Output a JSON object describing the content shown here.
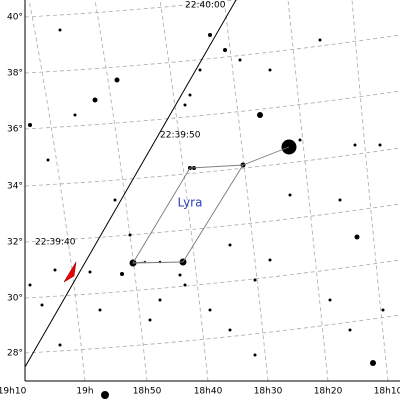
{
  "declination_labels": [
    "40°",
    "38°",
    "36°",
    "34°",
    "32°",
    "30°",
    "28°"
  ],
  "right_ascension_labels": [
    "19h10",
    "19h",
    "18h50",
    "18h40",
    "18h30",
    "18h20",
    "18h10"
  ],
  "track_time_labels": [
    "22:40:00",
    "22:39:50",
    "22:39:40"
  ],
  "constellation_name": "Lyra"
}
